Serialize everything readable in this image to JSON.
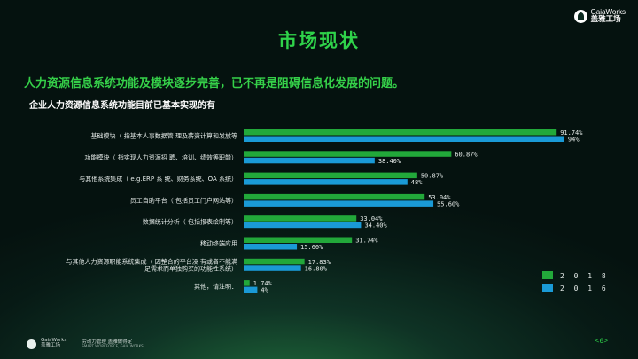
{
  "logo": {
    "en": "GaiaWorks",
    "cn": "盖雅工场"
  },
  "title": "市场现状",
  "subtitle": "人力资源信息系统功能及模块逐步完善，已不再是阻碍信息化发展的问题。",
  "chart_title": "企业人力资源信息系统功能目前已基本实现的有",
  "chart_data": {
    "type": "bar",
    "orientation": "horizontal",
    "categories": [
      [
        "基础模块（ 指基本人事数据管 理及薪资计算和发放等"
      ],
      [
        "功能模块（ 指实现人力资源招 聘、培训、绩效等职能）"
      ],
      [
        "与其他系统集成（ e.g.ERP 系 统、财务系统、OA 系统）"
      ],
      [
        "员工自助平台（ 包括员工门户网站等）"
      ],
      [
        "数据统计分析（ 包括报表绘制等）"
      ],
      [
        "移动终端应用"
      ],
      [
        "与其他人力资源职能系统集成（ 因整合的平台没 有或者不能满",
        "足需求而单独购买的功能性系统）"
      ],
      [
        "其他，请注明："
      ]
    ],
    "series": [
      {
        "name": "2 0 1 8",
        "values": [
          91.74,
          60.87,
          50.87,
          53.04,
          33.04,
          31.74,
          17.83,
          1.74
        ],
        "labels": [
          "91.74%",
          "60.87%",
          "50.87%",
          "53.04%",
          "33.04%",
          "31.74%",
          "17.83%",
          "1.74%"
        ],
        "color": "#22a83a"
      },
      {
        "name": "2 0 1 6",
        "values": [
          94,
          38.4,
          48,
          55.6,
          34.4,
          15.6,
          16.8,
          4
        ],
        "labels": [
          "94%",
          "38.40%",
          "48%",
          "55.60%",
          "34.40%",
          "15.60%",
          "16.80%",
          "4%"
        ],
        "color": "#1a9ad6"
      }
    ],
    "xlim": [
      0,
      100
    ],
    "legend_position": "bottom-right"
  },
  "footer": {
    "en": "GaiaWorks",
    "cn": "盖雅工场",
    "tagline": "劳动力管理 盖雅做得定",
    "tagline_en": "SMART WORKFORCE, GAIA WORKS"
  },
  "page_number": "<6>"
}
